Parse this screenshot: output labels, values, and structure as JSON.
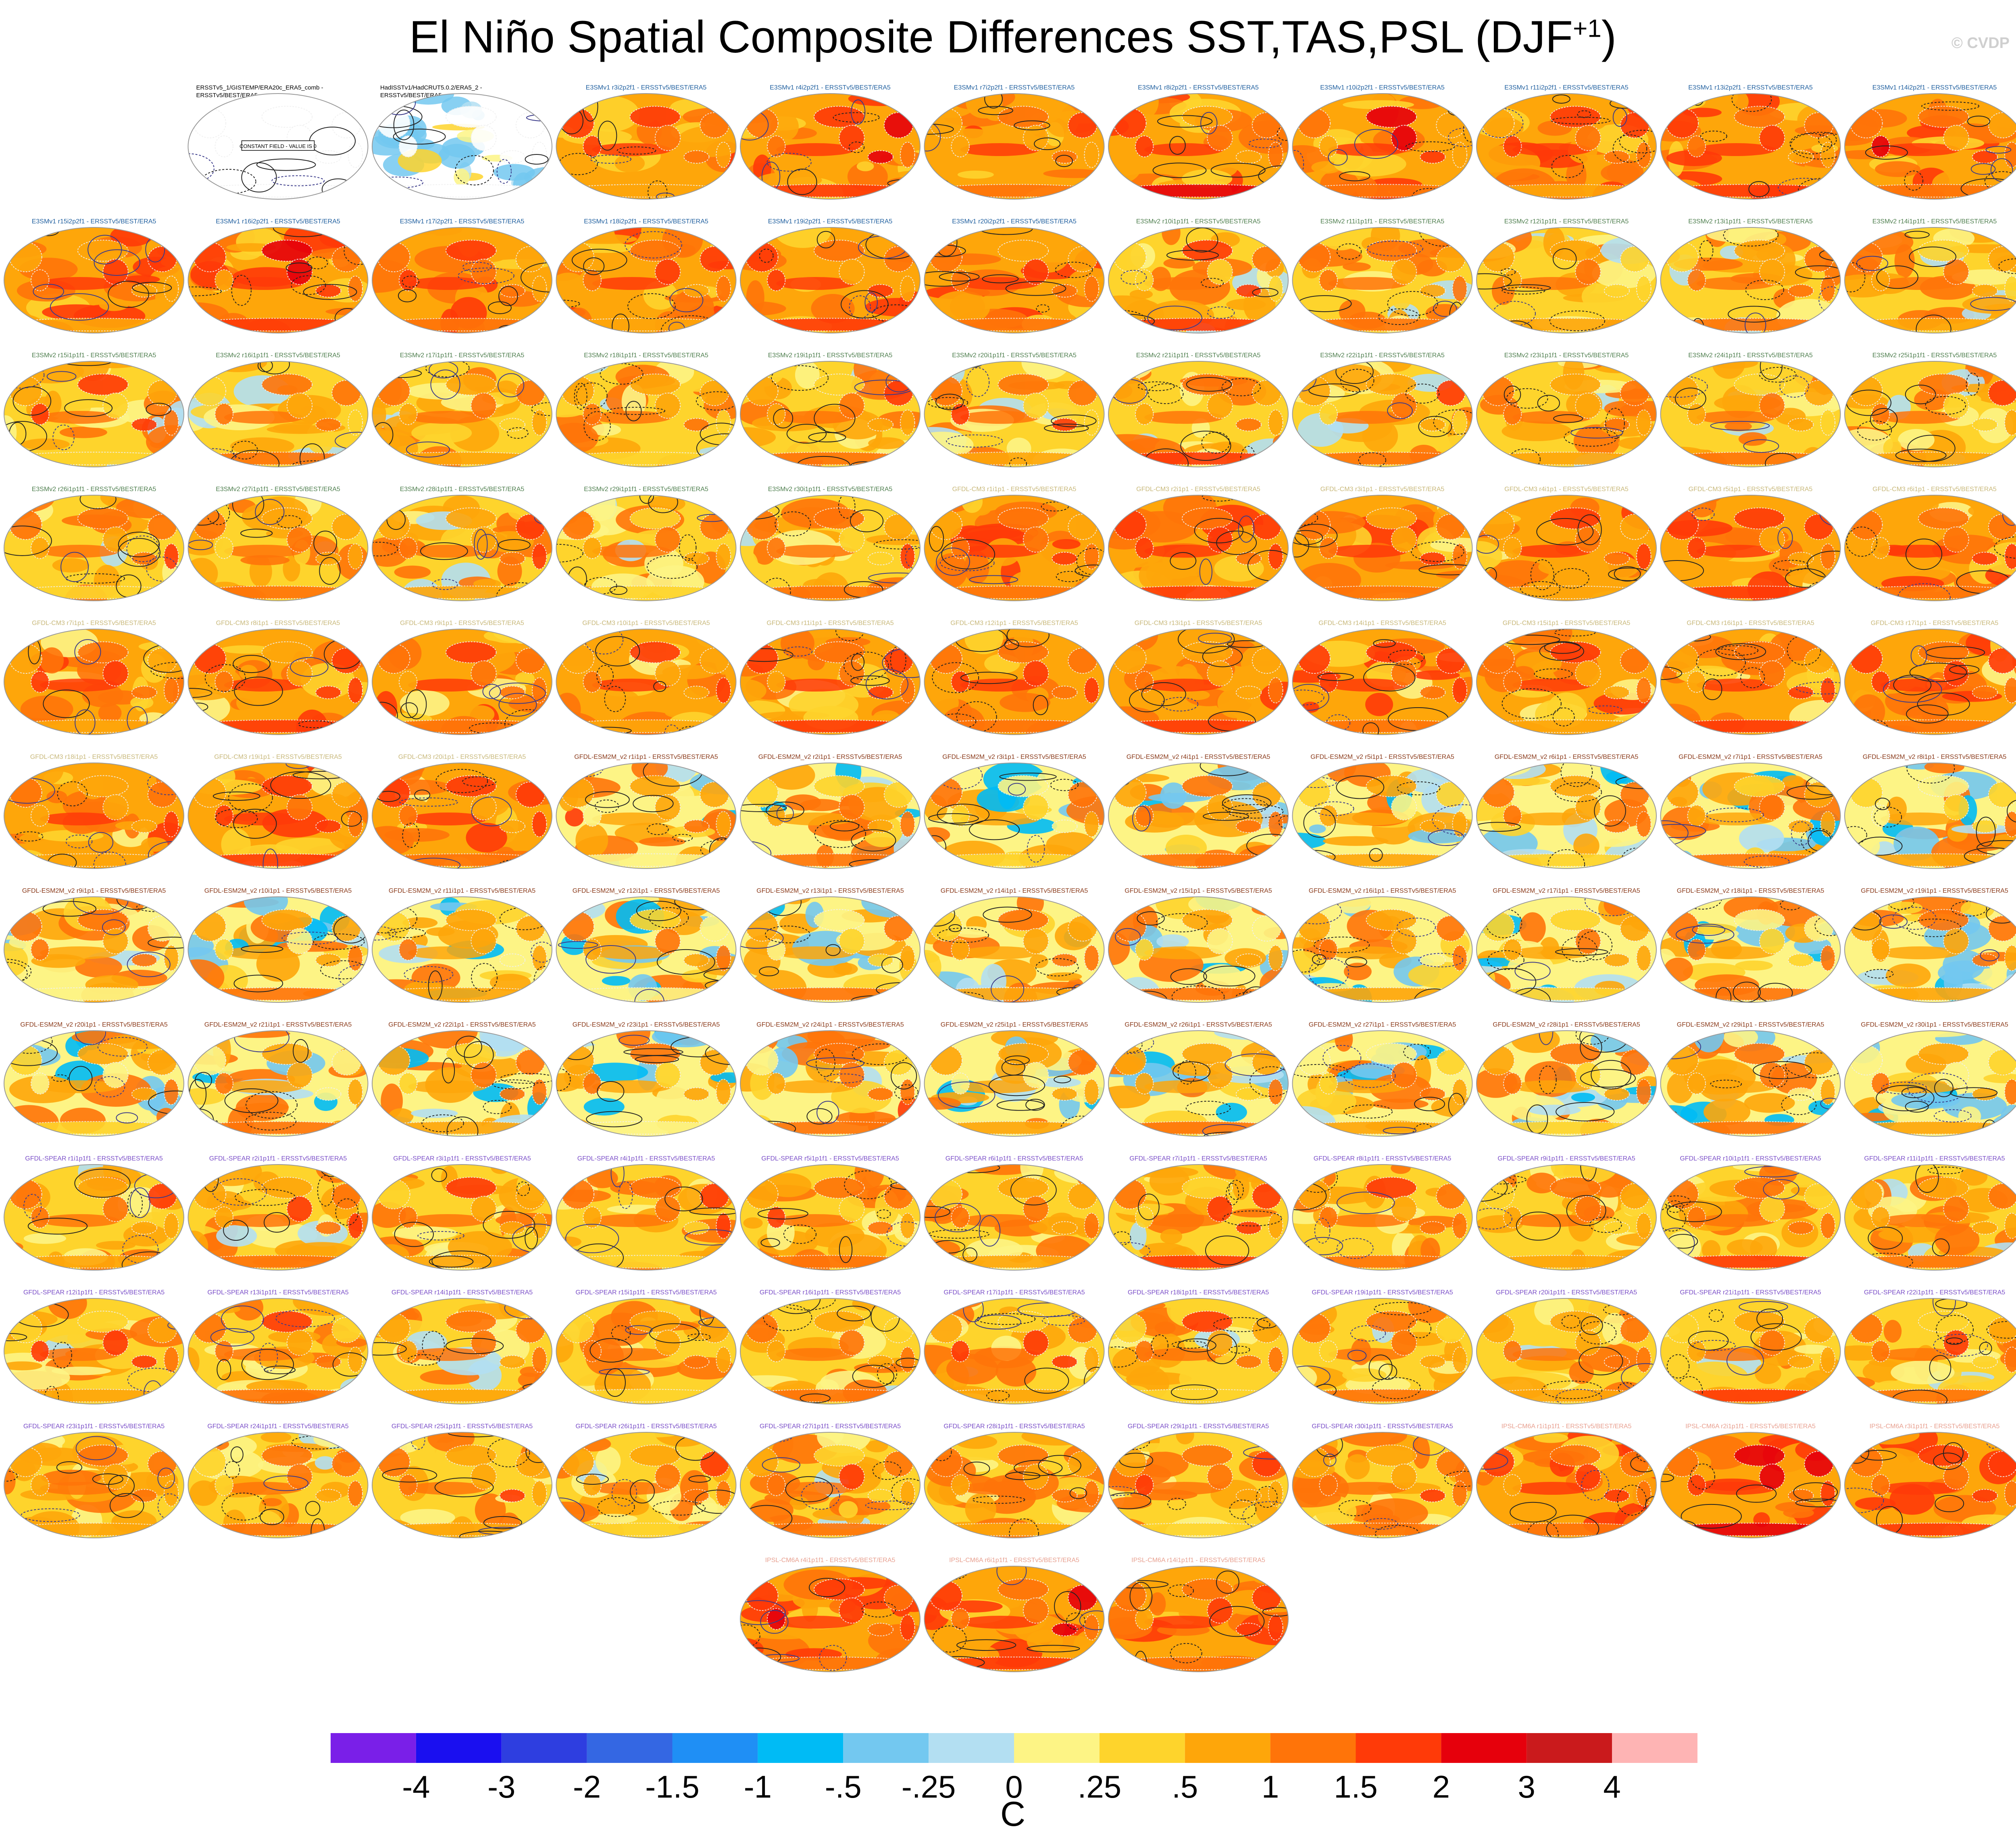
{
  "title": {
    "main": "El Niño Spatial Composite Differences SST,TAS,PSL (DJF",
    "superscript": "+1",
    "close": ")"
  },
  "credit": "© CVDP",
  "colorbar": {
    "colors": [
      "#7a1fe8",
      "#1a0ff0",
      "#2e3ee0",
      "#3467e3",
      "#1f8ff5",
      "#00bbf5",
      "#73c8f0",
      "#b3dff2",
      "#fdf485",
      "#fed42c",
      "#fea60a",
      "#ff7409",
      "#ff3a08",
      "#e6000c",
      "#ca1a1c",
      "#feb4b4"
    ],
    "tick_labels": [
      "-4",
      "-3",
      "-2",
      "-1.5",
      "-1",
      "-.5",
      "-.25",
      "0",
      ".25",
      ".5",
      "1",
      "1.5",
      "2",
      "3",
      "4"
    ],
    "unit": "C"
  },
  "chart_data": {
    "type": "heatmap",
    "description_units": "SST/TAS composite difference shading (C) with PSL contours",
    "panels": [
      {
        "label": "ERSSTv5_1/GISTEMP/ERA20c_ERA5_comb - ERSSTv5/BEST/ERA5",
        "group": "obs",
        "note": "CONSTANT FIELD - VALUE IS 0"
      },
      {
        "label": "HadISSTv1/HadCRUT5.0.2/ERA5_2 - ERSSTv5/BEST/ERA5",
        "group": "obs"
      },
      {
        "label": "E3SMv1 r3i2p2f1 - ERSSTv5/BEST/ERA5",
        "group": "e3smv1"
      },
      {
        "label": "E3SMv1 r4i2p2f1 - ERSSTv5/BEST/ERA5",
        "group": "e3smv1"
      },
      {
        "label": "E3SMv1 r7i2p2f1 - ERSSTv5/BEST/ERA5",
        "group": "e3smv1"
      },
      {
        "label": "E3SMv1 r8i2p2f1 - ERSSTv5/BEST/ERA5",
        "group": "e3smv1"
      },
      {
        "label": "E3SMv1 r10i2p2f1 - ERSSTv5/BEST/ERA5",
        "group": "e3smv1"
      },
      {
        "label": "E3SMv1 r11i2p2f1 - ERSSTv5/BEST/ERA5",
        "group": "e3smv1"
      },
      {
        "label": "E3SMv1 r13i2p2f1 - ERSSTv5/BEST/ERA5",
        "group": "e3smv1"
      },
      {
        "label": "E3SMv1 r14i2p2f1 - ERSSTv5/BEST/ERA5",
        "group": "e3smv1"
      },
      {
        "label": "E3SMv1 r15i2p2f1 - ERSSTv5/BEST/ERA5",
        "group": "e3smv1"
      },
      {
        "label": "E3SMv1 r16i2p2f1 - ERSSTv5/BEST/ERA5",
        "group": "e3smv1"
      },
      {
        "label": "E3SMv1 r17i2p2f1 - ERSSTv5/BEST/ERA5",
        "group": "e3smv1"
      },
      {
        "label": "E3SMv1 r18i2p2f1 - ERSSTv5/BEST/ERA5",
        "group": "e3smv1"
      },
      {
        "label": "E3SMv1 r19i2p2f1 - ERSSTv5/BEST/ERA5",
        "group": "e3smv1"
      },
      {
        "label": "E3SMv1 r20i2p2f1 - ERSSTv5/BEST/ERA5",
        "group": "e3smv1"
      },
      {
        "label": "E3SMv2 r10i1p1f1 - ERSSTv5/BEST/ERA5",
        "group": "e3smv2"
      },
      {
        "label": "E3SMv2 r11i1p1f1 - ERSSTv5/BEST/ERA5",
        "group": "e3smv2"
      },
      {
        "label": "E3SMv2 r12i1p1f1 - ERSSTv5/BEST/ERA5",
        "group": "e3smv2"
      },
      {
        "label": "E3SMv2 r13i1p1f1 - ERSSTv5/BEST/ERA5",
        "group": "e3smv2"
      },
      {
        "label": "E3SMv2 r14i1p1f1 - ERSSTv5/BEST/ERA5",
        "group": "e3smv2"
      },
      {
        "label": "E3SMv2 r15i1p1f1 - ERSSTv5/BEST/ERA5",
        "group": "e3smv2"
      },
      {
        "label": "E3SMv2 r16i1p1f1 - ERSSTv5/BEST/ERA5",
        "group": "e3smv2"
      },
      {
        "label": "E3SMv2 r17i1p1f1 - ERSSTv5/BEST/ERA5",
        "group": "e3smv2"
      },
      {
        "label": "E3SMv2 r18i1p1f1 - ERSSTv5/BEST/ERA5",
        "group": "e3smv2"
      },
      {
        "label": "E3SMv2 r19i1p1f1 - ERSSTv5/BEST/ERA5",
        "group": "e3smv2"
      },
      {
        "label": "E3SMv2 r20i1p1f1 - ERSSTv5/BEST/ERA5",
        "group": "e3smv2"
      },
      {
        "label": "E3SMv2 r21i1p1f1 - ERSSTv5/BEST/ERA5",
        "group": "e3smv2"
      },
      {
        "label": "E3SMv2 r22i1p1f1 - ERSSTv5/BEST/ERA5",
        "group": "e3smv2"
      },
      {
        "label": "E3SMv2 r23i1p1f1 - ERSSTv5/BEST/ERA5",
        "group": "e3smv2"
      },
      {
        "label": "E3SMv2 r24i1p1f1 - ERSSTv5/BEST/ERA5",
        "group": "e3smv2"
      },
      {
        "label": "E3SMv2 r25i1p1f1 - ERSSTv5/BEST/ERA5",
        "group": "e3smv2"
      },
      {
        "label": "E3SMv2 r26i1p1f1 - ERSSTv5/BEST/ERA5",
        "group": "e3smv2"
      },
      {
        "label": "E3SMv2 r27i1p1f1 - ERSSTv5/BEST/ERA5",
        "group": "e3smv2"
      },
      {
        "label": "E3SMv2 r28i1p1f1 - ERSSTv5/BEST/ERA5",
        "group": "e3smv2"
      },
      {
        "label": "E3SMv2 r29i1p1f1 - ERSSTv5/BEST/ERA5",
        "group": "e3smv2"
      },
      {
        "label": "E3SMv2 r30i1p1f1 - ERSSTv5/BEST/ERA5",
        "group": "e3smv2"
      },
      {
        "label": "GFDL-CM3 r1i1p1 - ERSSTv5/BEST/ERA5",
        "group": "gfdlcm3"
      },
      {
        "label": "GFDL-CM3 r2i1p1 - ERSSTv5/BEST/ERA5",
        "group": "gfdlcm3"
      },
      {
        "label": "GFDL-CM3 r3i1p1 - ERSSTv5/BEST/ERA5",
        "group": "gfdlcm3"
      },
      {
        "label": "GFDL-CM3 r4i1p1 - ERSSTv5/BEST/ERA5",
        "group": "gfdlcm3"
      },
      {
        "label": "GFDL-CM3 r5i1p1 - ERSSTv5/BEST/ERA5",
        "group": "gfdlcm3"
      },
      {
        "label": "GFDL-CM3 r6i1p1 - ERSSTv5/BEST/ERA5",
        "group": "gfdlcm3"
      },
      {
        "label": "GFDL-CM3 r7i1p1 - ERSSTv5/BEST/ERA5",
        "group": "gfdlcm3"
      },
      {
        "label": "GFDL-CM3 r8i1p1 - ERSSTv5/BEST/ERA5",
        "group": "gfdlcm3"
      },
      {
        "label": "GFDL-CM3 r9i1p1 - ERSSTv5/BEST/ERA5",
        "group": "gfdlcm3"
      },
      {
        "label": "GFDL-CM3 r10i1p1 - ERSSTv5/BEST/ERA5",
        "group": "gfdlcm3"
      },
      {
        "label": "GFDL-CM3 r11i1p1 - ERSSTv5/BEST/ERA5",
        "group": "gfdlcm3"
      },
      {
        "label": "GFDL-CM3 r12i1p1 - ERSSTv5/BEST/ERA5",
        "group": "gfdlcm3"
      },
      {
        "label": "GFDL-CM3 r13i1p1 - ERSSTv5/BEST/ERA5",
        "group": "gfdlcm3"
      },
      {
        "label": "GFDL-CM3 r14i1p1 - ERSSTv5/BEST/ERA5",
        "group": "gfdlcm3"
      },
      {
        "label": "GFDL-CM3 r15i1p1 - ERSSTv5/BEST/ERA5",
        "group": "gfdlcm3"
      },
      {
        "label": "GFDL-CM3 r16i1p1 - ERSSTv5/BEST/ERA5",
        "group": "gfdlcm3"
      },
      {
        "label": "GFDL-CM3 r17i1p1 - ERSSTv5/BEST/ERA5",
        "group": "gfdlcm3"
      },
      {
        "label": "GFDL-CM3 r18i1p1 - ERSSTv5/BEST/ERA5",
        "group": "gfdlcm3"
      },
      {
        "label": "GFDL-CM3 r19i1p1 - ERSSTv5/BEST/ERA5",
        "group": "gfdlcm3"
      },
      {
        "label": "GFDL-CM3 r20i1p1 - ERSSTv5/BEST/ERA5",
        "group": "gfdlcm3"
      },
      {
        "label": "GFDL-ESM2M_v2 r1i1p1 - ERSSTv5/BEST/ERA5",
        "group": "gfdlesm2m"
      },
      {
        "label": "GFDL-ESM2M_v2 r2i1p1 - ERSSTv5/BEST/ERA5",
        "group": "gfdlesm2m"
      },
      {
        "label": "GFDL-ESM2M_v2 r3i1p1 - ERSSTv5/BEST/ERA5",
        "group": "gfdlesm2m"
      },
      {
        "label": "GFDL-ESM2M_v2 r4i1p1 - ERSSTv5/BEST/ERA5",
        "group": "gfdlesm2m"
      },
      {
        "label": "GFDL-ESM2M_v2 r5i1p1 - ERSSTv5/BEST/ERA5",
        "group": "gfdlesm2m"
      },
      {
        "label": "GFDL-ESM2M_v2 r6i1p1 - ERSSTv5/BEST/ERA5",
        "group": "gfdlesm2m"
      },
      {
        "label": "GFDL-ESM2M_v2 r7i1p1 - ERSSTv5/BEST/ERA5",
        "group": "gfdlesm2m"
      },
      {
        "label": "GFDL-ESM2M_v2 r8i1p1 - ERSSTv5/BEST/ERA5",
        "group": "gfdlesm2m"
      },
      {
        "label": "GFDL-ESM2M_v2 r9i1p1 - ERSSTv5/BEST/ERA5",
        "group": "gfdlesm2m"
      },
      {
        "label": "GFDL-ESM2M_v2 r10i1p1 - ERSSTv5/BEST/ERA5",
        "group": "gfdlesm2m"
      },
      {
        "label": "GFDL-ESM2M_v2 r11i1p1 - ERSSTv5/BEST/ERA5",
        "group": "gfdlesm2m"
      },
      {
        "label": "GFDL-ESM2M_v2 r12i1p1 - ERSSTv5/BEST/ERA5",
        "group": "gfdlesm2m"
      },
      {
        "label": "GFDL-ESM2M_v2 r13i1p1 - ERSSTv5/BEST/ERA5",
        "group": "gfdlesm2m"
      },
      {
        "label": "GFDL-ESM2M_v2 r14i1p1 - ERSSTv5/BEST/ERA5",
        "group": "gfdlesm2m"
      },
      {
        "label": "GFDL-ESM2M_v2 r15i1p1 - ERSSTv5/BEST/ERA5",
        "group": "gfdlesm2m"
      },
      {
        "label": "GFDL-ESM2M_v2 r16i1p1 - ERSSTv5/BEST/ERA5",
        "group": "gfdlesm2m"
      },
      {
        "label": "GFDL-ESM2M_v2 r17i1p1 - ERSSTv5/BEST/ERA5",
        "group": "gfdlesm2m"
      },
      {
        "label": "GFDL-ESM2M_v2 r18i1p1 - ERSSTv5/BEST/ERA5",
        "group": "gfdlesm2m"
      },
      {
        "label": "GFDL-ESM2M_v2 r19i1p1 - ERSSTv5/BEST/ERA5",
        "group": "gfdlesm2m"
      },
      {
        "label": "GFDL-ESM2M_v2 r20i1p1 - ERSSTv5/BEST/ERA5",
        "group": "gfdlesm2m"
      },
      {
        "label": "GFDL-ESM2M_v2 r21i1p1 - ERSSTv5/BEST/ERA5",
        "group": "gfdlesm2m"
      },
      {
        "label": "GFDL-ESM2M_v2 r22i1p1 - ERSSTv5/BEST/ERA5",
        "group": "gfdlesm2m"
      },
      {
        "label": "GFDL-ESM2M_v2 r23i1p1 - ERSSTv5/BEST/ERA5",
        "group": "gfdlesm2m"
      },
      {
        "label": "GFDL-ESM2M_v2 r24i1p1 - ERSSTv5/BEST/ERA5",
        "group": "gfdlesm2m"
      },
      {
        "label": "GFDL-ESM2M_v2 r25i1p1 - ERSSTv5/BEST/ERA5",
        "group": "gfdlesm2m"
      },
      {
        "label": "GFDL-ESM2M_v2 r26i1p1 - ERSSTv5/BEST/ERA5",
        "group": "gfdlesm2m"
      },
      {
        "label": "GFDL-ESM2M_v2 r27i1p1 - ERSSTv5/BEST/ERA5",
        "group": "gfdlesm2m"
      },
      {
        "label": "GFDL-ESM2M_v2 r28i1p1 - ERSSTv5/BEST/ERA5",
        "group": "gfdlesm2m"
      },
      {
        "label": "GFDL-ESM2M_v2 r29i1p1 - ERSSTv5/BEST/ERA5",
        "group": "gfdlesm2m"
      },
      {
        "label": "GFDL-ESM2M_v2 r30i1p1 - ERSSTv5/BEST/ERA5",
        "group": "gfdlesm2m"
      },
      {
        "label": "GFDL-SPEAR r1i1p1f1 - ERSSTv5/BEST/ERA5",
        "group": "gfdlspear"
      },
      {
        "label": "GFDL-SPEAR r2i1p1f1 - ERSSTv5/BEST/ERA5",
        "group": "gfdlspear"
      },
      {
        "label": "GFDL-SPEAR r3i1p1f1 - ERSSTv5/BEST/ERA5",
        "group": "gfdlspear"
      },
      {
        "label": "GFDL-SPEAR r4i1p1f1 - ERSSTv5/BEST/ERA5",
        "group": "gfdlspear"
      },
      {
        "label": "GFDL-SPEAR r5i1p1f1 - ERSSTv5/BEST/ERA5",
        "group": "gfdlspear"
      },
      {
        "label": "GFDL-SPEAR r6i1p1f1 - ERSSTv5/BEST/ERA5",
        "group": "gfdlspear"
      },
      {
        "label": "GFDL-SPEAR r7i1p1f1 - ERSSTv5/BEST/ERA5",
        "group": "gfdlspear"
      },
      {
        "label": "GFDL-SPEAR r8i1p1f1 - ERSSTv5/BEST/ERA5",
        "group": "gfdlspear"
      },
      {
        "label": "GFDL-SPEAR r9i1p1f1 - ERSSTv5/BEST/ERA5",
        "group": "gfdlspear"
      },
      {
        "label": "GFDL-SPEAR r10i1p1f1 - ERSSTv5/BEST/ERA5",
        "group": "gfdlspear"
      },
      {
        "label": "GFDL-SPEAR r11i1p1f1 - ERSSTv5/BEST/ERA5",
        "group": "gfdlspear"
      },
      {
        "label": "GFDL-SPEAR r12i1p1f1 - ERSSTv5/BEST/ERA5",
        "group": "gfdlspear"
      },
      {
        "label": "GFDL-SPEAR r13i1p1f1 - ERSSTv5/BEST/ERA5",
        "group": "gfdlspear"
      },
      {
        "label": "GFDL-SPEAR r14i1p1f1 - ERSSTv5/BEST/ERA5",
        "group": "gfdlspear"
      },
      {
        "label": "GFDL-SPEAR r15i1p1f1 - ERSSTv5/BEST/ERA5",
        "group": "gfdlspear"
      },
      {
        "label": "GFDL-SPEAR r16i1p1f1 - ERSSTv5/BEST/ERA5",
        "group": "gfdlspear"
      },
      {
        "label": "GFDL-SPEAR r17i1p1f1 - ERSSTv5/BEST/ERA5",
        "group": "gfdlspear"
      },
      {
        "label": "GFDL-SPEAR r18i1p1f1 - ERSSTv5/BEST/ERA5",
        "group": "gfdlspear"
      },
      {
        "label": "GFDL-SPEAR r19i1p1f1 - ERSSTv5/BEST/ERA5",
        "group": "gfdlspear"
      },
      {
        "label": "GFDL-SPEAR r20i1p1f1 - ERSSTv5/BEST/ERA5",
        "group": "gfdlspear"
      },
      {
        "label": "GFDL-SPEAR r21i1p1f1 - ERSSTv5/BEST/ERA5",
        "group": "gfdlspear"
      },
      {
        "label": "GFDL-SPEAR r22i1p1f1 - ERSSTv5/BEST/ERA5",
        "group": "gfdlspear"
      },
      {
        "label": "GFDL-SPEAR r23i1p1f1 - ERSSTv5/BEST/ERA5",
        "group": "gfdlspear"
      },
      {
        "label": "GFDL-SPEAR r24i1p1f1 - ERSSTv5/BEST/ERA5",
        "group": "gfdlspear"
      },
      {
        "label": "GFDL-SPEAR r25i1p1f1 - ERSSTv5/BEST/ERA5",
        "group": "gfdlspear"
      },
      {
        "label": "GFDL-SPEAR r26i1p1f1 - ERSSTv5/BEST/ERA5",
        "group": "gfdlspear"
      },
      {
        "label": "GFDL-SPEAR r27i1p1f1 - ERSSTv5/BEST/ERA5",
        "group": "gfdlspear"
      },
      {
        "label": "GFDL-SPEAR r28i1p1f1 - ERSSTv5/BEST/ERA5",
        "group": "gfdlspear"
      },
      {
        "label": "GFDL-SPEAR r29i1p1f1 - ERSSTv5/BEST/ERA5",
        "group": "gfdlspear"
      },
      {
        "label": "GFDL-SPEAR r30i1p1f1 - ERSSTv5/BEST/ERA5",
        "group": "gfdlspear"
      },
      {
        "label": "IPSL-CM6A r1i1p1f1 - ERSSTv5/BEST/ERA5",
        "group": "ipsl"
      },
      {
        "label": "IPSL-CM6A r2i1p1f1 - ERSSTv5/BEST/ERA5",
        "group": "ipsl"
      },
      {
        "label": "IPSL-CM6A r3i1p1f1 - ERSSTv5/BEST/ERA5",
        "group": "ipsl"
      },
      {
        "label": "IPSL-CM6A r4i1p1f1 - ERSSTv5/BEST/ERA5",
        "group": "ipsl"
      },
      {
        "label": "IPSL-CM6A r6i1p1f1 - ERSSTv5/BEST/ERA5",
        "group": "ipsl"
      },
      {
        "label": "IPSL-CM6A r14i1p1f1 - ERSSTv5/BEST/ERA5",
        "group": "ipsl"
      }
    ],
    "group_label_colors": {
      "obs": "#000000",
      "e3smv1": "#1f5f9f",
      "e3smv2": "#4f7f4f",
      "gfdlcm3": "#c8b87a",
      "gfdlesm2m": "#8a3a1a",
      "gfdlspear": "#7a4ec8",
      "ipsl": "#e8a090"
    },
    "group_anomaly_level": {
      "obs": 0.0,
      "e3smv1": 0.95,
      "e3smv2": 0.55,
      "gfdlcm3": 0.85,
      "gfdlesm2m": 0.3,
      "gfdlspear": 0.6,
      "ipsl": 1.1
    }
  }
}
